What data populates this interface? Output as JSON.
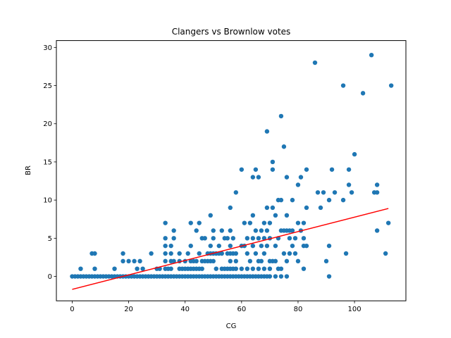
{
  "chart_data": {
    "type": "scatter",
    "title": "Clangers vs Brownlow votes",
    "xlabel": "CG",
    "ylabel": "BR",
    "xlim": [
      -5.6,
      118.2
    ],
    "ylim": [
      -3.2,
      30.9
    ],
    "x_ticks": [
      0,
      20,
      40,
      60,
      80,
      100
    ],
    "y_ticks": [
      0,
      5,
      10,
      15,
      20,
      25,
      30
    ],
    "grid": false,
    "legend": "none",
    "point_color": "#1f77b4",
    "line_color": "#ff0000",
    "trend_line": {
      "x": [
        0,
        112
      ],
      "y": [
        -1.7,
        8.9
      ]
    },
    "points": [
      [
        0,
        0
      ],
      [
        1,
        0
      ],
      [
        2,
        0
      ],
      [
        3,
        0
      ],
      [
        4,
        0
      ],
      [
        5,
        0
      ],
      [
        6,
        0
      ],
      [
        7,
        0
      ],
      [
        8,
        0
      ],
      [
        9,
        0
      ],
      [
        10,
        0
      ],
      [
        11,
        0
      ],
      [
        12,
        0
      ],
      [
        13,
        0
      ],
      [
        14,
        0
      ],
      [
        15,
        0
      ],
      [
        16,
        0
      ],
      [
        17,
        0
      ],
      [
        18,
        0
      ],
      [
        19,
        0
      ],
      [
        20,
        0
      ],
      [
        21,
        0
      ],
      [
        22,
        0
      ],
      [
        23,
        0
      ],
      [
        24,
        0
      ],
      [
        25,
        0
      ],
      [
        26,
        0
      ],
      [
        27,
        0
      ],
      [
        28,
        0
      ],
      [
        29,
        0
      ],
      [
        30,
        0
      ],
      [
        31,
        0
      ],
      [
        32,
        0
      ],
      [
        33,
        0
      ],
      [
        34,
        0
      ],
      [
        35,
        0
      ],
      [
        36,
        0
      ],
      [
        37,
        0
      ],
      [
        38,
        0
      ],
      [
        39,
        0
      ],
      [
        40,
        0
      ],
      [
        41,
        0
      ],
      [
        42,
        0
      ],
      [
        43,
        0
      ],
      [
        44,
        0
      ],
      [
        45,
        0
      ],
      [
        46,
        0
      ],
      [
        47,
        0
      ],
      [
        48,
        0
      ],
      [
        49,
        0
      ],
      [
        50,
        0
      ],
      [
        51,
        0
      ],
      [
        52,
        0
      ],
      [
        53,
        0
      ],
      [
        54,
        0
      ],
      [
        55,
        0
      ],
      [
        56,
        0
      ],
      [
        57,
        0
      ],
      [
        58,
        0
      ],
      [
        59,
        0
      ],
      [
        60,
        0
      ],
      [
        61,
        0
      ],
      [
        62,
        0
      ],
      [
        63,
        0
      ],
      [
        64,
        0
      ],
      [
        65,
        0
      ],
      [
        66,
        0
      ],
      [
        67,
        0
      ],
      [
        68,
        0
      ],
      [
        69,
        0
      ],
      [
        70,
        0
      ],
      [
        72,
        0
      ],
      [
        74,
        0
      ],
      [
        76,
        0
      ],
      [
        91,
        0
      ],
      [
        3,
        1
      ],
      [
        7,
        3
      ],
      [
        8,
        3
      ],
      [
        8,
        1
      ],
      [
        15,
        1
      ],
      [
        18,
        3
      ],
      [
        18,
        2
      ],
      [
        20,
        2
      ],
      [
        22,
        2
      ],
      [
        23,
        1
      ],
      [
        24,
        2
      ],
      [
        25,
        1
      ],
      [
        28,
        3
      ],
      [
        30,
        1
      ],
      [
        31,
        1
      ],
      [
        33,
        7
      ],
      [
        33,
        5
      ],
      [
        33,
        4
      ],
      [
        33,
        3
      ],
      [
        33,
        2
      ],
      [
        33,
        1
      ],
      [
        34,
        1
      ],
      [
        35,
        4
      ],
      [
        35,
        3
      ],
      [
        35,
        2
      ],
      [
        35,
        1
      ],
      [
        36,
        6
      ],
      [
        36,
        5
      ],
      [
        36,
        2
      ],
      [
        38,
        3
      ],
      [
        38,
        2
      ],
      [
        38,
        1
      ],
      [
        39,
        1
      ],
      [
        40,
        2
      ],
      [
        40,
        1
      ],
      [
        41,
        3
      ],
      [
        41,
        1
      ],
      [
        42,
        7
      ],
      [
        42,
        4
      ],
      [
        42,
        2
      ],
      [
        42,
        1
      ],
      [
        43,
        2
      ],
      [
        43,
        1
      ],
      [
        44,
        6
      ],
      [
        44,
        2
      ],
      [
        44,
        1
      ],
      [
        45,
        7
      ],
      [
        45,
        3
      ],
      [
        45,
        1
      ],
      [
        46,
        5
      ],
      [
        46,
        2
      ],
      [
        46,
        1
      ],
      [
        47,
        5
      ],
      [
        47,
        2
      ],
      [
        48,
        3
      ],
      [
        48,
        2
      ],
      [
        49,
        8
      ],
      [
        49,
        4
      ],
      [
        49,
        3
      ],
      [
        49,
        2
      ],
      [
        50,
        6
      ],
      [
        50,
        5
      ],
      [
        50,
        3
      ],
      [
        50,
        2
      ],
      [
        51,
        3
      ],
      [
        51,
        1
      ],
      [
        52,
        4
      ],
      [
        52,
        3
      ],
      [
        53,
        6
      ],
      [
        53,
        3
      ],
      [
        53,
        1
      ],
      [
        54,
        5
      ],
      [
        54,
        1
      ],
      [
        55,
        5
      ],
      [
        55,
        3
      ],
      [
        55,
        1
      ],
      [
        56,
        9
      ],
      [
        56,
        6
      ],
      [
        56,
        4
      ],
      [
        56,
        3
      ],
      [
        56,
        2
      ],
      [
        56,
        1
      ],
      [
        57,
        5
      ],
      [
        57,
        3
      ],
      [
        57,
        1
      ],
      [
        58,
        11
      ],
      [
        58,
        3
      ],
      [
        58,
        2
      ],
      [
        58,
        1
      ],
      [
        60,
        14
      ],
      [
        60,
        4
      ],
      [
        60,
        1
      ],
      [
        61,
        7
      ],
      [
        61,
        4
      ],
      [
        62,
        5
      ],
      [
        62,
        3
      ],
      [
        62,
        1
      ],
      [
        63,
        7
      ],
      [
        63,
        2
      ],
      [
        64,
        13
      ],
      [
        64,
        8
      ],
      [
        64,
        5
      ],
      [
        64,
        4
      ],
      [
        64,
        1
      ],
      [
        65,
        14
      ],
      [
        65,
        6
      ],
      [
        65,
        3
      ],
      [
        66,
        13
      ],
      [
        66,
        5
      ],
      [
        66,
        2
      ],
      [
        66,
        1
      ],
      [
        67,
        6
      ],
      [
        67,
        4
      ],
      [
        67,
        2
      ],
      [
        68,
        7
      ],
      [
        68,
        5
      ],
      [
        68,
        3
      ],
      [
        68,
        1
      ],
      [
        69,
        19
      ],
      [
        69,
        9
      ],
      [
        69,
        6
      ],
      [
        69,
        4
      ],
      [
        70,
        7
      ],
      [
        70,
        5
      ],
      [
        70,
        2
      ],
      [
        70,
        1
      ],
      [
        71,
        15
      ],
      [
        71,
        14
      ],
      [
        71,
        9
      ],
      [
        71,
        2
      ],
      [
        72,
        8
      ],
      [
        72,
        4
      ],
      [
        72,
        2
      ],
      [
        73,
        10
      ],
      [
        73,
        5
      ],
      [
        73,
        1
      ],
      [
        74,
        21
      ],
      [
        74,
        10
      ],
      [
        74,
        6
      ],
      [
        74,
        1
      ],
      [
        75,
        17
      ],
      [
        75,
        6
      ],
      [
        75,
        3
      ],
      [
        76,
        13
      ],
      [
        76,
        8
      ],
      [
        76,
        6
      ],
      [
        76,
        2
      ],
      [
        77,
        6
      ],
      [
        77,
        5
      ],
      [
        77,
        3
      ],
      [
        78,
        10
      ],
      [
        78,
        6
      ],
      [
        78,
        4
      ],
      [
        79,
        5
      ],
      [
        79,
        3
      ],
      [
        80,
        12
      ],
      [
        80,
        7
      ],
      [
        80,
        2
      ],
      [
        81,
        13
      ],
      [
        81,
        6
      ],
      [
        82,
        7
      ],
      [
        82,
        5
      ],
      [
        82,
        4
      ],
      [
        82,
        1
      ],
      [
        83,
        14
      ],
      [
        83,
        9
      ],
      [
        83,
        4
      ],
      [
        86,
        28
      ],
      [
        87,
        11
      ],
      [
        88,
        9
      ],
      [
        89,
        11
      ],
      [
        90,
        2
      ],
      [
        91,
        10
      ],
      [
        91,
        4
      ],
      [
        92,
        14
      ],
      [
        93,
        11
      ],
      [
        96,
        25
      ],
      [
        96,
        10
      ],
      [
        97,
        3
      ],
      [
        98,
        14
      ],
      [
        98,
        12
      ],
      [
        99,
        11
      ],
      [
        100,
        16
      ],
      [
        103,
        24
      ],
      [
        106,
        29
      ],
      [
        107,
        11
      ],
      [
        108,
        12
      ],
      [
        108,
        11
      ],
      [
        108,
        6
      ],
      [
        111,
        3
      ],
      [
        112,
        7
      ],
      [
        113,
        25
      ]
    ]
  }
}
